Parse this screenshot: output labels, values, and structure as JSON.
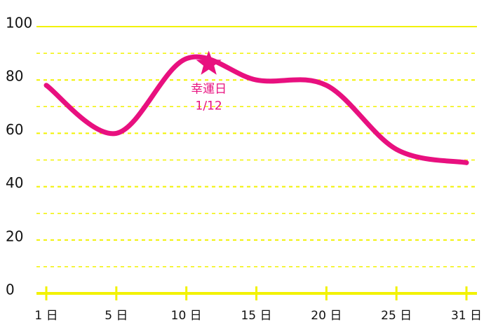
{
  "chart_data": {
    "type": "line",
    "categories": [
      "1 日",
      "5 日",
      "10 日",
      "15 日",
      "20 日",
      "25 日",
      "31 日"
    ],
    "values": [
      78,
      60,
      88,
      80,
      78,
      54,
      49
    ],
    "color": "#e8107f",
    "axis_color": "#f2f200",
    "ylim": [
      0,
      100
    ],
    "yticks": [
      0,
      20,
      40,
      60,
      80,
      100
    ],
    "minor_yticks": [
      10,
      30,
      50,
      70,
      90
    ],
    "grid": true,
    "annotation": {
      "lines": [
        "幸運日",
        "1/12"
      ],
      "value": 86
    }
  }
}
